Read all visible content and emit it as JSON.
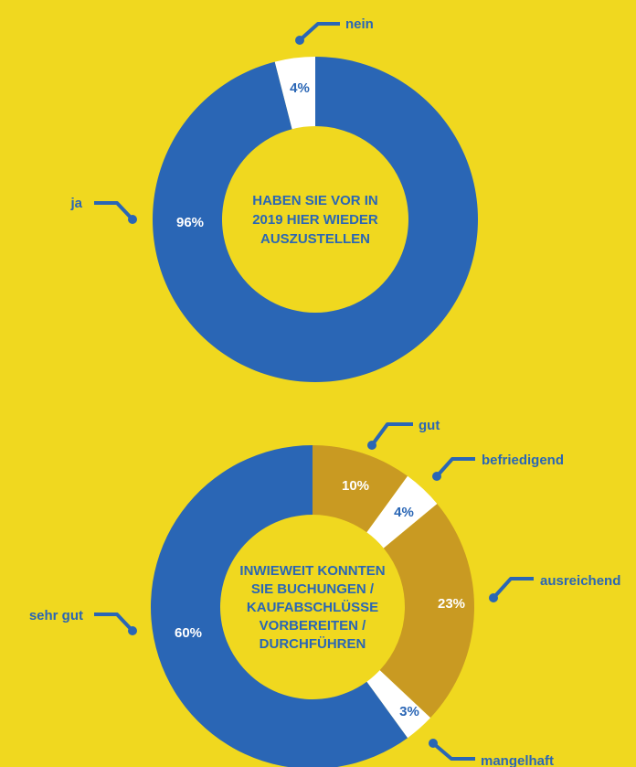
{
  "colors": {
    "background": "#F0D81F",
    "blue": "#2A66B5",
    "gold": "#C99A22",
    "white": "#FFFFFF"
  },
  "chart_data": [
    {
      "type": "pie",
      "title_lines": [
        "HABEN SIE VOR IN",
        "2019 HIER WIEDER",
        "AUSZUSTELLEN"
      ],
      "slices": [
        {
          "label": "ja",
          "value": 96,
          "value_label": "96%",
          "color": "#2A66B5"
        },
        {
          "label": "nein",
          "value": 4,
          "value_label": "4%",
          "color": "#FFFFFF"
        }
      ]
    },
    {
      "type": "pie",
      "title_lines": [
        "INWIEWEIT KONNTEN",
        "SIE BUCHUNGEN /",
        "KAUFABSCHLÜSSE",
        "VORBEREITEN /",
        "DURCHFÜHREN"
      ],
      "slices": [
        {
          "label": "gut",
          "value": 10,
          "value_label": "10%",
          "color": "#C99A22"
        },
        {
          "label": "befriedigend",
          "value": 4,
          "value_label": "4%",
          "color": "#FFFFFF"
        },
        {
          "label": "ausreichend",
          "value": 23,
          "value_label": "23%",
          "color": "#C99A22"
        },
        {
          "label": "mangelhaft",
          "value": 3,
          "value_label": "3%",
          "color": "#FFFFFF"
        },
        {
          "label": "sehr gut",
          "value": 60,
          "value_label": "60%",
          "color": "#2A66B5"
        }
      ]
    }
  ]
}
